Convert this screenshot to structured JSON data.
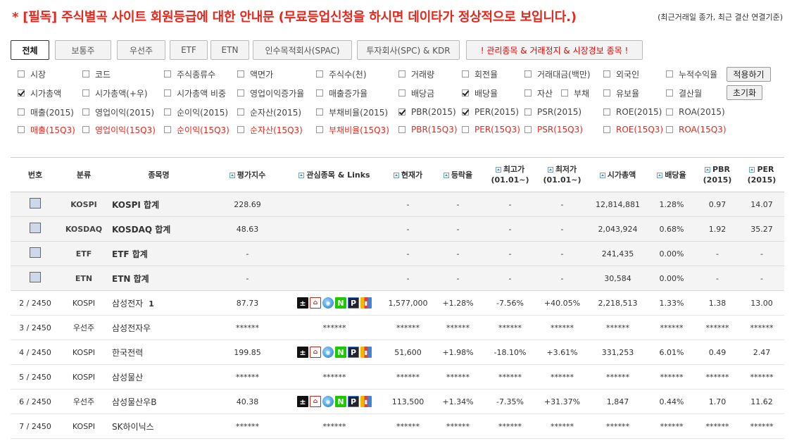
{
  "notice": {
    "title": "* [필독] 주식별곡 사이트 회원등급에 대한 안내문 (무료등업신청을 하시면 데이타가 정상적으로 보입니다.)",
    "sub": "(최근거래일 종가, 최근 결산 연결기준)"
  },
  "tabs": [
    {
      "label": "전체",
      "active": true
    },
    {
      "label": "보통주"
    },
    {
      "label": "우선주"
    },
    {
      "label": "ETF"
    },
    {
      "label": "ETN"
    },
    {
      "label": "인수목적회사(SPAC)"
    },
    {
      "label": "투자회사(SPC) & KDR"
    },
    {
      "label": "! 관리종목 & 거래정지 & 시장경보 종목 !"
    }
  ],
  "options": [
    {
      "label": "시장",
      "checked": false
    },
    {
      "label": "코드",
      "checked": false
    },
    {
      "label": "주식종류수",
      "checked": false
    },
    {
      "label": "액면가",
      "checked": false
    },
    {
      "label": "주식수(천)",
      "checked": false
    },
    {
      "label": "거래량",
      "checked": false
    },
    {
      "label": "회전율",
      "checked": false
    },
    {
      "label": "거래대금(백만)",
      "checked": false
    },
    {
      "label": "외국인",
      "checked": false
    },
    {
      "label": "누적수익율",
      "checked": false
    },
    {
      "label": "시가총액",
      "checked": true
    },
    {
      "label": "시가총액(+우)",
      "checked": false
    },
    {
      "label": "시가총액 비중",
      "checked": false
    },
    {
      "label": "영업이익증가율",
      "checked": false
    },
    {
      "label": "매출증가율",
      "checked": false
    },
    {
      "label": "배당금",
      "checked": false
    },
    {
      "label": "배당율",
      "checked": true
    },
    {
      "label": "자산",
      "checked": false
    },
    {
      "label": "부채",
      "checked": false
    },
    {
      "label": "유보율",
      "checked": false
    },
    {
      "label": "결산월",
      "checked": false
    },
    {
      "label": "매출(2015)",
      "checked": false
    },
    {
      "label": "영업이익(2015)",
      "checked": false
    },
    {
      "label": "순이익(2015)",
      "checked": false
    },
    {
      "label": "순자산(2015)",
      "checked": false
    },
    {
      "label": "부채비율(2015)",
      "checked": false
    },
    {
      "label": "PBR(2015)",
      "checked": true
    },
    {
      "label": "PER(2015)",
      "checked": true
    },
    {
      "label": "PSR(2015)",
      "checked": false
    },
    {
      "label": "ROE(2015)",
      "checked": false
    },
    {
      "label": "ROA(2015)",
      "checked": false
    },
    {
      "label": "매출(15Q3)",
      "checked": false
    },
    {
      "label": "영업이익(15Q3)",
      "checked": false
    },
    {
      "label": "순이익(15Q3)",
      "checked": false
    },
    {
      "label": "순자산(15Q3)",
      "checked": false
    },
    {
      "label": "부채비율(15Q3)",
      "checked": false
    },
    {
      "label": "PBR(15Q3)",
      "checked": false
    },
    {
      "label": "PER(15Q3)",
      "checked": false
    },
    {
      "label": "PSR(15Q3)",
      "checked": false
    },
    {
      "label": "ROE(15Q3)",
      "checked": false
    },
    {
      "label": "ROA(15Q3)",
      "checked": false
    }
  ],
  "buttons": {
    "apply": "적용하기",
    "reset": "초기화"
  },
  "table": {
    "headers": [
      {
        "label": "번호"
      },
      {
        "label": "분류"
      },
      {
        "label": "종목명"
      },
      {
        "label": "평가지수",
        "sortable": true
      },
      {
        "label": "관심종목 & Links",
        "sortable": true
      },
      {
        "label": "현재가",
        "sortable": true
      },
      {
        "label": "등락율",
        "sortable": true
      },
      {
        "label": "최고가",
        "sub": "(01.01~)",
        "sortable": true
      },
      {
        "label": "최저가",
        "sub": "(01.01~)",
        "sortable": true
      },
      {
        "label": "시가총액",
        "sortable": true
      },
      {
        "label": "배당율",
        "sortable": true
      },
      {
        "label": "PBR",
        "sub": "(2015)",
        "sortable": true
      },
      {
        "label": "PER",
        "sub": "(2015)",
        "sortable": true
      }
    ],
    "summary_rows": [
      {
        "cat": "KOSPI",
        "name": "KOSPI 합계",
        "score": "228.69",
        "price": "-",
        "change": "-",
        "high": "-",
        "low": "-",
        "mcap": "12,814,881",
        "div": "1.28%",
        "pbr": "0.97",
        "per": "14.07"
      },
      {
        "cat": "KOSDAQ",
        "name": "KOSDAQ 합계",
        "score": "48.63",
        "price": "-",
        "change": "-",
        "high": "-",
        "low": "-",
        "mcap": "2,043,924",
        "div": "0.68%",
        "pbr": "1.92",
        "per": "35.27"
      },
      {
        "cat": "ETF",
        "name": "ETF 합계",
        "score": "-",
        "price": "-",
        "change": "-",
        "high": "-",
        "low": "-",
        "mcap": "241,435",
        "div": "0.00%",
        "pbr": "-",
        "per": "-"
      },
      {
        "cat": "ETN",
        "name": "ETN 합계",
        "score": "-",
        "price": "-",
        "change": "-",
        "high": "-",
        "low": "-",
        "mcap": "30,584",
        "div": "0.00%",
        "pbr": "-",
        "per": "-"
      }
    ],
    "rows": [
      {
        "no": "2 / 2450",
        "cat": "KOSPI",
        "name": "삼성전자",
        "badge": "1",
        "score": "87.73",
        "links": true,
        "price": "1,577,000",
        "change": "+1.28%",
        "high": "-7.56%",
        "low": "+40.05%",
        "mcap": "2,218,513",
        "div": "1.33%",
        "pbr": "1.38",
        "per": "13.00"
      },
      {
        "no": "3 / 2450",
        "cat": "우선주",
        "name": "삼성전자우",
        "score": "******",
        "links_text": "******",
        "price": "******",
        "change": "******",
        "high": "******",
        "low": "******",
        "mcap": "******",
        "div": "******",
        "pbr": "******",
        "per": "******"
      },
      {
        "no": "4 / 2450",
        "cat": "KOSPI",
        "name": "한국전력",
        "score": "199.85",
        "links": true,
        "price": "51,600",
        "change": "+1.98%",
        "high": "-18.10%",
        "low": "+3.61%",
        "mcap": "331,253",
        "div": "6.01%",
        "pbr": "0.49",
        "per": "2.47"
      },
      {
        "no": "5 / 2450",
        "cat": "KOSPI",
        "name": "삼성물산",
        "score": "******",
        "links_text": "******",
        "price": "******",
        "change": "******",
        "high": "******",
        "low": "******",
        "mcap": "******",
        "div": "******",
        "pbr": "******",
        "per": "******"
      },
      {
        "no": "6 / 2450",
        "cat": "우선주",
        "name": "삼성물산우B",
        "score": "40.38",
        "links": true,
        "price": "113,500",
        "change": "+1.34%",
        "high": "-7.35%",
        "low": "+31.37%",
        "mcap": "1,847",
        "div": "0.44%",
        "pbr": "1.70",
        "per": "11.62"
      },
      {
        "no": "7 / 2450",
        "cat": "KOSPI",
        "name": "SK하이닉스",
        "score": "******",
        "links_text": "******",
        "price": "******",
        "change": "******",
        "high": "******",
        "low": "******",
        "mcap": "******",
        "div": "******",
        "pbr": "******",
        "per": "******"
      }
    ],
    "link_icons": [
      {
        "name": "add-interest-icon",
        "glyph": "±",
        "cls": "plus"
      },
      {
        "name": "home-icon",
        "glyph": "⌂",
        "cls": "home"
      },
      {
        "name": "globe-icon",
        "glyph": "◉",
        "cls": "ball"
      },
      {
        "name": "naver-icon",
        "glyph": "N",
        "cls": "n"
      },
      {
        "name": "paxnet-icon",
        "glyph": "P",
        "cls": "p"
      },
      {
        "name": "chart-icon",
        "glyph": "▮",
        "cls": "chart"
      }
    ]
  }
}
